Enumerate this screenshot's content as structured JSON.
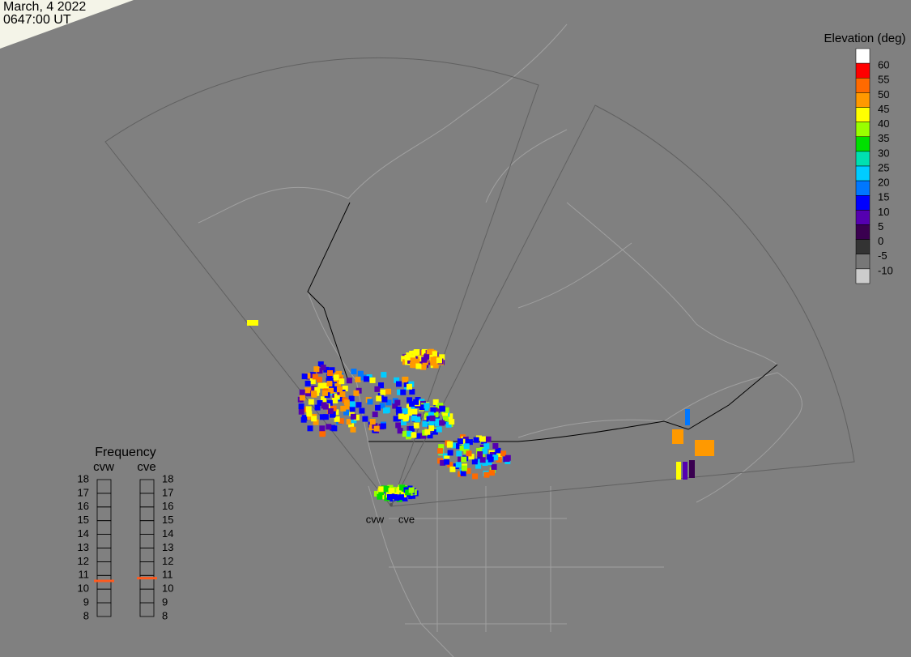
{
  "header": {
    "date": "March, 4 2022",
    "time": "0647:00 UT"
  },
  "colorbar": {
    "title": "Elevation (deg)",
    "colors": [
      "#ffffff",
      "#ff0000",
      "#ff6a00",
      "#ff9900",
      "#ffff00",
      "#99ff00",
      "#00e000",
      "#00e0b0",
      "#00ccff",
      "#0077ff",
      "#0000ff",
      "#5500b0",
      "#3a0050",
      "#333333",
      "#777777",
      "#cccccc"
    ],
    "ticks": [
      60,
      55,
      50,
      45,
      40,
      35,
      30,
      25,
      20,
      15,
      10,
      5,
      0,
      -5,
      -10
    ]
  },
  "frequency": {
    "title": "Frequency",
    "radars": [
      "cvw",
      "cve"
    ],
    "ticks": [
      18,
      17,
      16,
      15,
      14,
      13,
      12,
      11,
      10,
      9,
      8
    ],
    "values": [
      10.6,
      10.8
    ],
    "marker_color": "#ff5a1e"
  },
  "radar_labels": [
    "cvw",
    "cve"
  ]
}
